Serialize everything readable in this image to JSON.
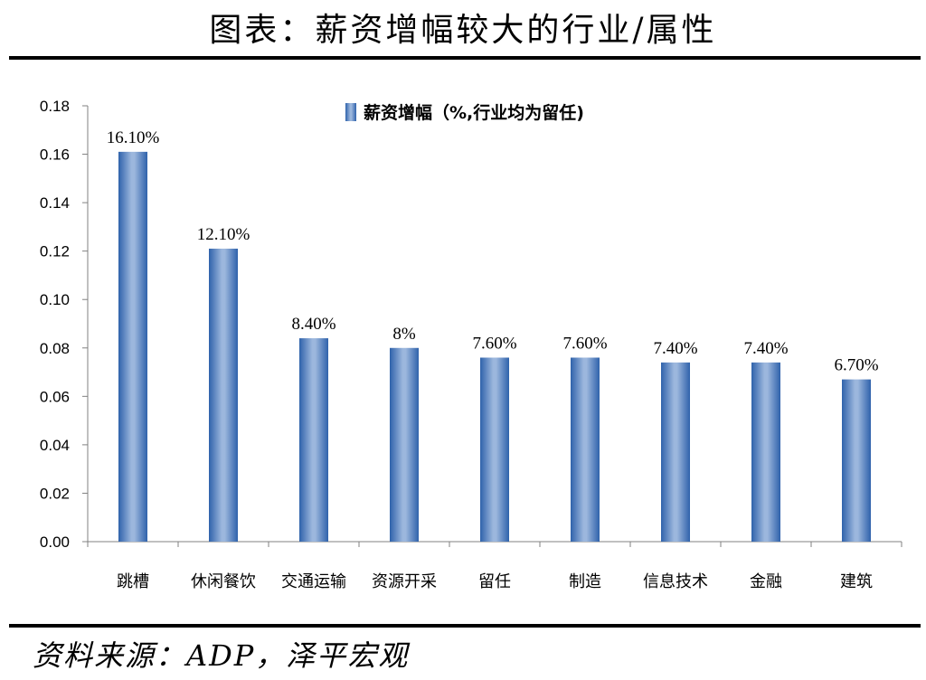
{
  "page": {
    "title": "图表：薪资增幅较大的行业/属性",
    "source": "资料来源：ADP，泽平宏观"
  },
  "chart_data": {
    "type": "bar",
    "categories": [
      "跳槽",
      "休闲餐饮",
      "交通运输",
      "资源开采",
      "留任",
      "制造",
      "信息技术",
      "金融",
      "建筑"
    ],
    "series": [
      {
        "name": "薪资增幅（%,行业均为留任)",
        "values": [
          0.161,
          0.121,
          0.084,
          0.08,
          0.076,
          0.076,
          0.074,
          0.074,
          0.067
        ],
        "data_labels": [
          "16.10%",
          "12.10%",
          "8.40%",
          "8%",
          "7.60%",
          "7.60%",
          "7.40%",
          "7.40%",
          "6.70%"
        ]
      }
    ],
    "title": "",
    "xlabel": "",
    "ylabel": "",
    "ylim": [
      0,
      0.18
    ],
    "yticks": [
      "0.00",
      "0.02",
      "0.04",
      "0.06",
      "0.08",
      "0.10",
      "0.12",
      "0.14",
      "0.16",
      "0.18"
    ],
    "grid": false,
    "legend_position": "top-center",
    "bar_color": "#4a7fc1"
  }
}
